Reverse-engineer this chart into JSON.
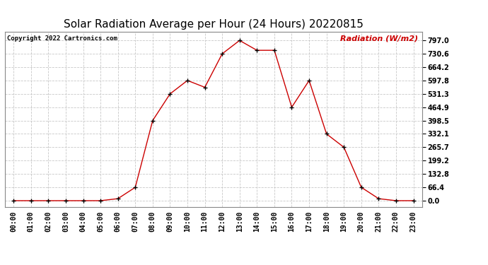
{
  "title": "Solar Radiation Average per Hour (24 Hours) 20220815",
  "copyright_text": "Copyright 2022 Cartronics.com",
  "ylabel": "Radiation (W/m2)",
  "hours": [
    "00:00",
    "01:00",
    "02:00",
    "03:00",
    "04:00",
    "05:00",
    "06:00",
    "07:00",
    "08:00",
    "09:00",
    "10:00",
    "11:00",
    "12:00",
    "13:00",
    "14:00",
    "15:00",
    "16:00",
    "17:00",
    "18:00",
    "19:00",
    "20:00",
    "21:00",
    "22:00",
    "23:00"
  ],
  "values": [
    0.0,
    0.0,
    0.0,
    0.0,
    0.0,
    0.0,
    10.0,
    66.4,
    398.5,
    531.3,
    597.8,
    564.0,
    730.6,
    797.0,
    748.0,
    748.0,
    464.9,
    597.8,
    332.1,
    265.7,
    66.4,
    10.0,
    0.0,
    0.0
  ],
  "line_color": "#cc0000",
  "marker_color": "#000000",
  "grid_color": "#c8c8c8",
  "bg_color": "#ffffff",
  "title_fontsize": 11,
  "label_fontsize": 8,
  "tick_fontsize": 7,
  "ylabel_color": "#cc0000",
  "copyright_color": "#000000",
  "yticks": [
    0.0,
    66.4,
    132.8,
    199.2,
    265.7,
    332.1,
    398.5,
    464.9,
    531.3,
    597.8,
    664.2,
    730.6,
    797.0
  ],
  "ylim": [
    -30,
    840
  ]
}
